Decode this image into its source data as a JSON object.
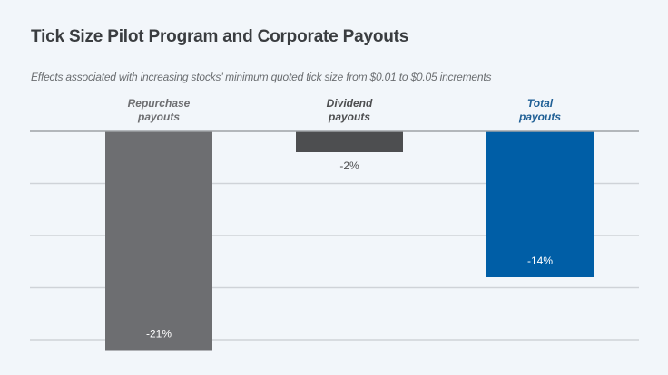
{
  "chart_data": {
    "type": "bar",
    "title": "Tick Size Pilot Program and Corporate Payouts",
    "subtitle": "Effects associated with increasing stocks’ minimum quoted tick size from $0.01 to $0.05 increments",
    "xlabel": "",
    "ylabel": "",
    "categories": [
      "Repurchase payouts",
      "Dividend payouts",
      "Total payouts"
    ],
    "category_label_lines": [
      [
        "Repurchase",
        "payouts"
      ],
      [
        "Dividend",
        "payouts"
      ],
      [
        "Total",
        "payouts"
      ]
    ],
    "values": [
      -21,
      -2,
      -14
    ],
    "data_labels": [
      "-21%",
      "-2%",
      "-14%"
    ],
    "unit": "%",
    "ylim": [
      -21,
      0
    ],
    "gridlines": [
      0,
      -5,
      -10,
      -15,
      -20
    ],
    "grid": true,
    "legend": "none",
    "colors": {
      "bars": [
        "#6d6e71",
        "#4d4e50",
        "#005ea6"
      ],
      "category_labels": [
        "#6d6e71",
        "#4d4e50",
        "#1f5f95"
      ],
      "label_inside": "#ffffff",
      "label_outside": "#4d4e50",
      "grid": "#cfd3d8",
      "zero_line": "#9ea2a6"
    }
  }
}
